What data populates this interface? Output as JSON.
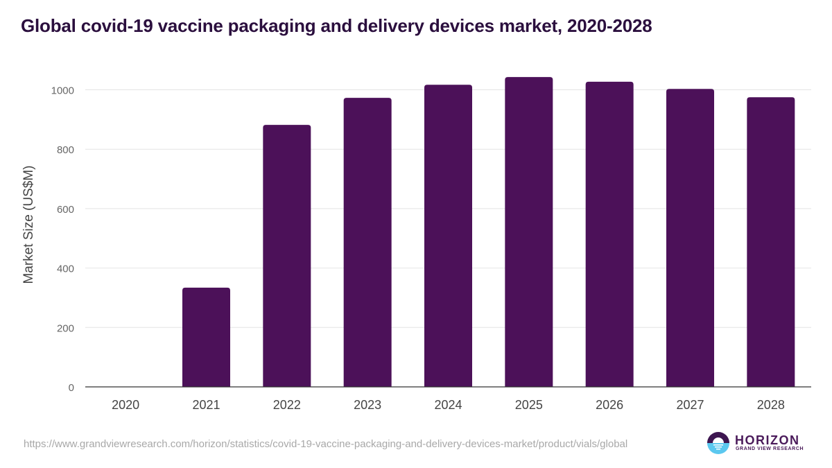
{
  "chart_data": {
    "type": "bar",
    "title": "Global covid-19 vaccine packaging and delivery devices market, 2020-2028",
    "xlabel": "",
    "ylabel": "Market Size (US$M)",
    "categories": [
      "2020",
      "2021",
      "2022",
      "2023",
      "2024",
      "2025",
      "2026",
      "2027",
      "2028"
    ],
    "values": [
      0,
      334,
      882,
      973,
      1017,
      1043,
      1027,
      1003,
      975
    ],
    "ylim": [
      0,
      1000
    ],
    "yticks": [
      0,
      200,
      400,
      600,
      800,
      1000
    ],
    "grid": true,
    "legend": "none",
    "bar_color": "#4c1159"
  },
  "source_url": "https://www.grandviewresearch.com/horizon/statistics/covid-19-vaccine-packaging-and-delivery-devices-market/product/vials/global",
  "logo": {
    "name": "HORIZON",
    "subtitle": "GRAND VIEW RESEARCH"
  }
}
